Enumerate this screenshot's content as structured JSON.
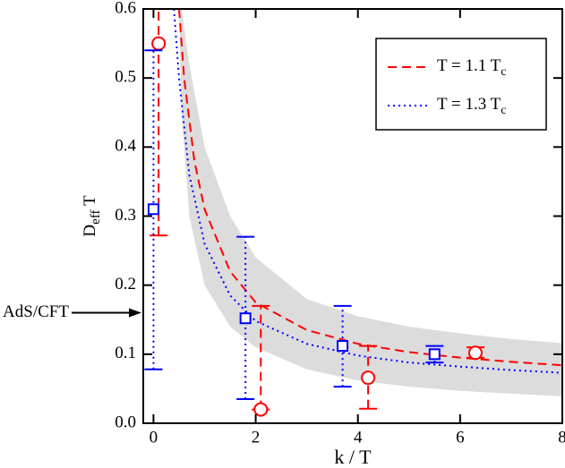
{
  "chart_data": {
    "type": "scatter",
    "xlabel": "k / T",
    "ylabel": {
      "main": "D",
      "sub": "eff",
      "rest": " T"
    },
    "xlim": [
      -0.2,
      8
    ],
    "ylim": [
      0,
      0.6
    ],
    "xticks": [
      0,
      2,
      4,
      6,
      8
    ],
    "yticks": [
      {
        "value": 0,
        "label": "0.0"
      },
      0.1,
      0.2,
      0.3,
      0.4,
      0.5,
      0.6
    ],
    "band": {
      "color": "#dcdcdc",
      "x": [
        0.5,
        0.55,
        0.7,
        1,
        1.5,
        2,
        3,
        4,
        5,
        6,
        7,
        8
      ],
      "upper": [
        0.6,
        0.6,
        0.52,
        0.4,
        0.3,
        0.24,
        0.18,
        0.155,
        0.14,
        0.13,
        0.122,
        0.116
      ],
      "lower": [
        0.6,
        0.45,
        0.3,
        0.2,
        0.14,
        0.11,
        0.078,
        0.062,
        0.053,
        0.047,
        0.043,
        0.039
      ]
    },
    "series": [
      {
        "name": "T = 1.1 T",
        "name_sub": "c",
        "color": "#ff0000",
        "marker": "circle",
        "dash": "dashed",
        "x": [
          0.1,
          2.1,
          4.2,
          6.3
        ],
        "values": [
          0.55,
          0.02,
          0.066,
          0.102
        ],
        "err_lo": [
          0.272,
          0.02,
          0.021,
          0.095
        ],
        "err_hi": [
          0.8,
          0.17,
          0.112,
          0.11
        ],
        "curve_x": [
          0.5,
          0.6,
          0.8,
          1,
          1.5,
          2,
          3,
          4,
          5,
          6,
          7,
          8
        ],
        "curve_y": [
          0.6,
          0.5,
          0.38,
          0.31,
          0.22,
          0.175,
          0.135,
          0.115,
          0.103,
          0.095,
          0.089,
          0.084
        ]
      },
      {
        "name": "T = 1.3 T",
        "name_sub": "c",
        "color": "#0000ff",
        "marker": "square",
        "dash": "dotted",
        "x": [
          0.0,
          1.8,
          3.7,
          5.5
        ],
        "values": [
          0.31,
          0.152,
          0.112,
          0.1
        ],
        "err_lo": [
          0.078,
          0.035,
          0.053,
          0.088
        ],
        "err_hi": [
          0.54,
          0.27,
          0.17,
          0.112
        ],
        "curve_x": [
          0.4,
          0.5,
          0.7,
          1,
          1.5,
          2,
          3,
          4,
          5,
          6,
          7,
          8
        ],
        "curve_y": [
          0.6,
          0.5,
          0.36,
          0.26,
          0.185,
          0.148,
          0.115,
          0.098,
          0.088,
          0.082,
          0.077,
          0.073
        ]
      }
    ],
    "annotation": {
      "text": "AdS/CFT",
      "y": 0.16
    },
    "legend": "upper right"
  }
}
